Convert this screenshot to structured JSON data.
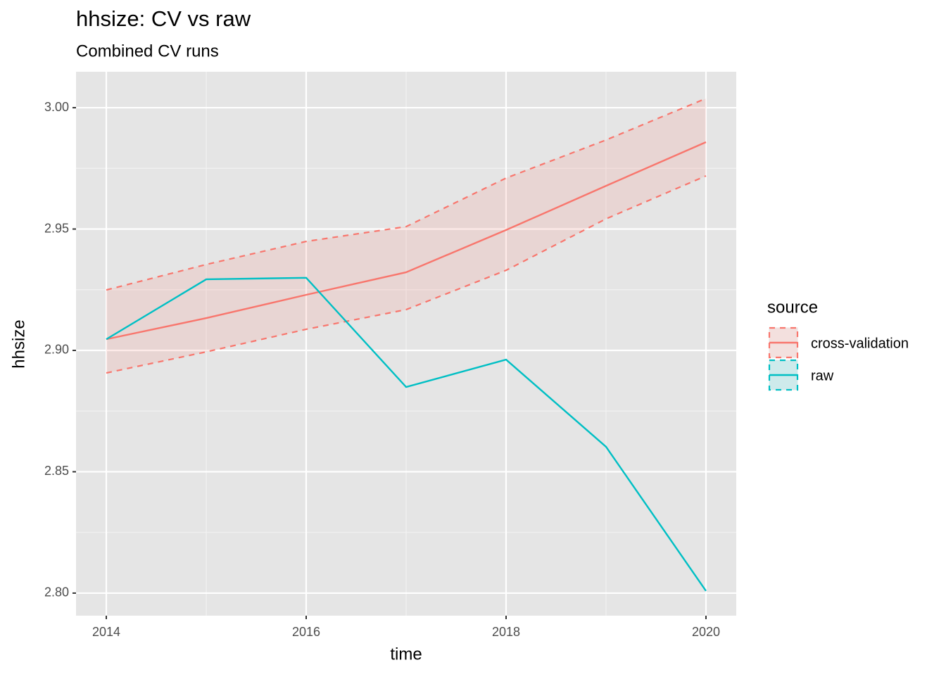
{
  "chart_data": {
    "type": "line",
    "title": "hhsize: CV vs raw",
    "subtitle": "Combined CV runs",
    "x_label": "time",
    "y_label": "hhsize",
    "legend_title": "source",
    "x": [
      2014,
      2015,
      2016,
      2017,
      2018,
      2019,
      2020
    ],
    "series": [
      {
        "name": "cross-validation",
        "color": "#F8766D",
        "values": [
          2.9046,
          2.9133,
          2.9229,
          2.9322,
          2.9496,
          2.9678,
          2.9858
        ],
        "upper": [
          2.9249,
          2.9354,
          2.9449,
          2.951,
          2.971,
          2.9867,
          3.0038
        ],
        "lower": [
          2.8907,
          2.8994,
          2.9087,
          2.9168,
          2.933,
          2.9542,
          2.9719
        ]
      },
      {
        "name": "raw",
        "color": "#00BFC4",
        "values": [
          2.9046,
          2.9293,
          2.9299,
          2.8849,
          2.8962,
          2.8603,
          2.8009
        ]
      }
    ],
    "xlim": [
      2013.697,
      2020.303
    ],
    "ylim": [
      2.7907,
      3.0148
    ],
    "xticks": [
      2014,
      2016,
      2018,
      2020
    ],
    "yticks": [
      {
        "value": 2.8,
        "label": "2.80"
      },
      2.85,
      {
        "value": 2.9,
        "label": "2.90"
      },
      2.95,
      {
        "value": 3,
        "label": "3.00"
      }
    ],
    "grid": true,
    "minor_grid": true,
    "legend": "right"
  }
}
